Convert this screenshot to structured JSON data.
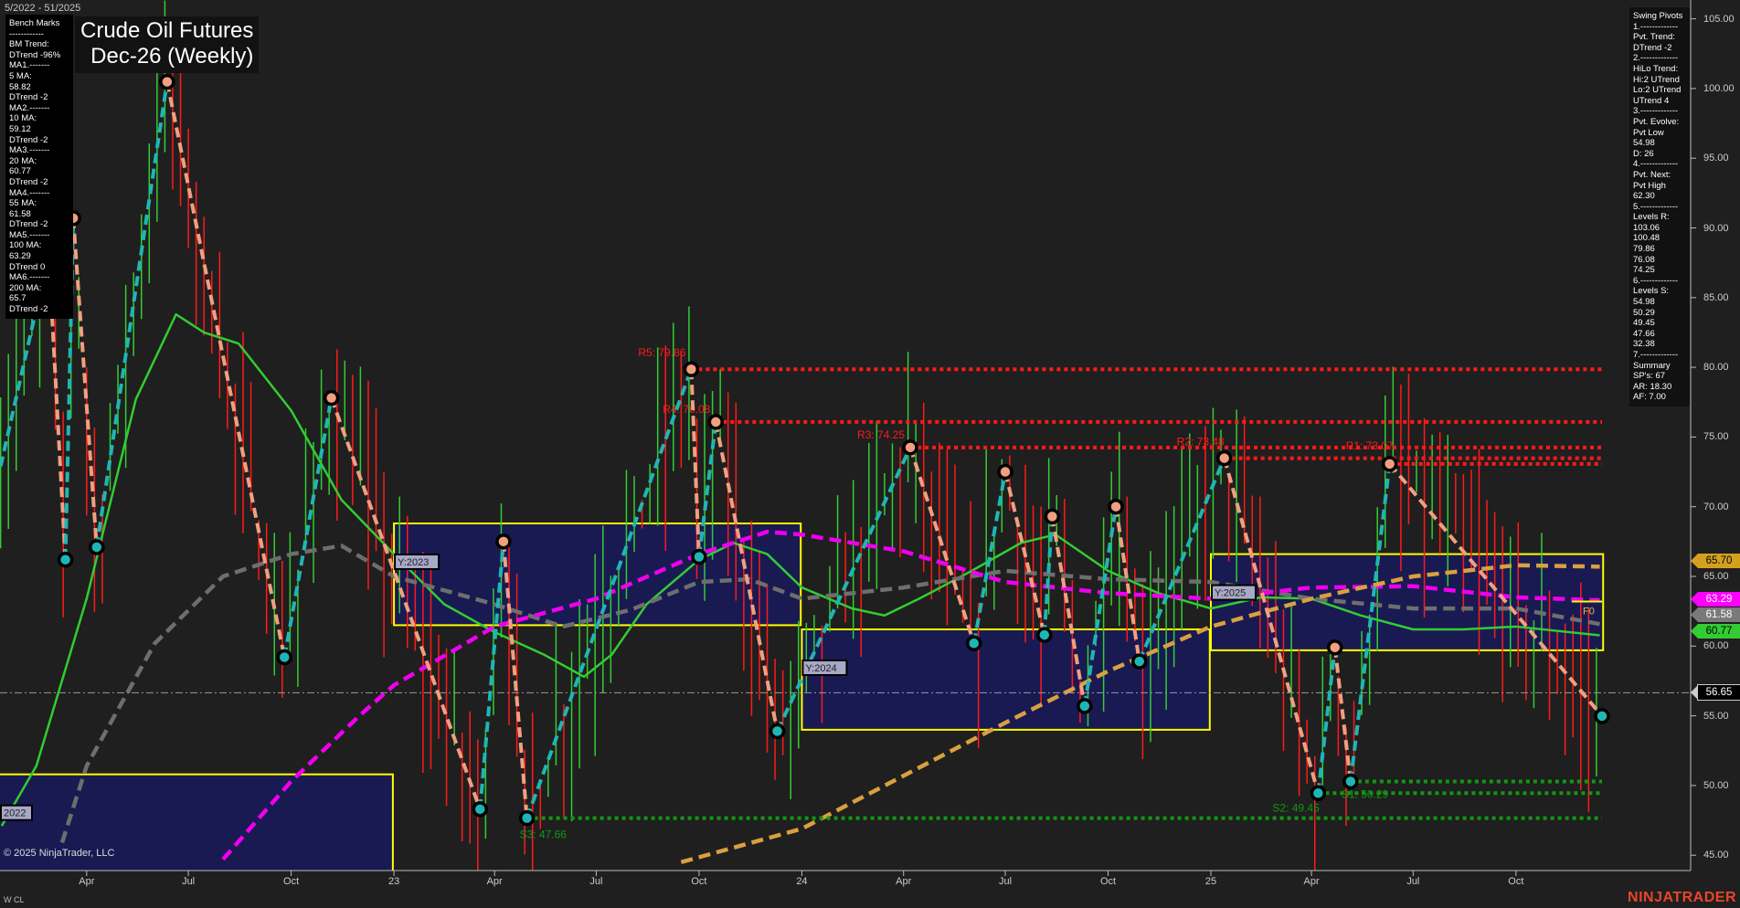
{
  "header": {
    "date_range": "5/2022 - 51/2025",
    "title_line1": "Crude Oil Futures",
    "title_line2": "Dec-26 (Weekly)"
  },
  "bench_marks": {
    "lines": [
      "Bench Marks",
      "------------",
      "BM Trend:",
      "DTrend -96%",
      "MA1.-------",
      "5 MA:",
      "58.82",
      "DTrend -2",
      "MA2.-------",
      "10 MA:",
      "59.12",
      "DTrend -2",
      "MA3.-------",
      "20 MA:",
      "60.77",
      "DTrend -2",
      "MA4.-------",
      "55 MA:",
      "61.58",
      "DTrend -2",
      "MA5.-------",
      "100 MA:",
      "63.29",
      "DTrend 0",
      "MA6.-------",
      "200 MA:",
      "65.7",
      "DTrend -2"
    ]
  },
  "swing_pivots": {
    "lines": [
      "Swing Pivots",
      "1.-------------",
      "Pvt. Trend:",
      "DTrend -2",
      "2.-------------",
      "HiLo Trend:",
      "Hi:2 UTrend",
      "Lo:2 UTrend",
      "UTrend 4",
      "3.-------------",
      "Pvt. Evolve:",
      "Pvt Low",
      "54.98",
      "D: 26",
      "4.-------------",
      "Pvt. Next:",
      "Pvt High",
      "62.30",
      "5.-------------",
      "Levels R:",
      "103.06",
      "100.48",
      "79.86",
      "76.08",
      "74.25",
      "6.-------------",
      "Levels S:",
      "54.98",
      "50.29",
      "49.45",
      "47.66",
      "32.38",
      "7.-------------",
      "Summary",
      "SP's: 67",
      "AR: 18.30",
      "AF: 7.00"
    ]
  },
  "price_axis": {
    "ticks": [
      {
        "label": "105.00",
        "value": 105
      },
      {
        "label": "100.00",
        "value": 100
      },
      {
        "label": "95.00",
        "value": 95
      },
      {
        "label": "90.00",
        "value": 90
      },
      {
        "label": "85.00",
        "value": 85
      },
      {
        "label": "80.00",
        "value": 80
      },
      {
        "label": "75.00",
        "value": 75
      },
      {
        "label": "70.00",
        "value": 70
      },
      {
        "label": "65.00",
        "value": 65
      },
      {
        "label": "60.00",
        "value": 60
      },
      {
        "label": "55.00",
        "value": 55
      },
      {
        "label": "50.00",
        "value": 50
      },
      {
        "label": "45.00",
        "value": 45
      }
    ],
    "badges": [
      {
        "label": "65.70",
        "value": 65.7,
        "color": "#d4a020",
        "text_color": "#000000"
      },
      {
        "label": "63.29",
        "value": 63.29,
        "color": "#ff00ff",
        "text_color": "#ffffff"
      },
      {
        "label": "61.58",
        "value": 61.58,
        "color": "#7a7a7a",
        "text_color": "#ffffff"
      },
      {
        "label": "60.77",
        "value": 60.77,
        "color": "#33cc33",
        "text_color": "#000000"
      },
      {
        "label": "56.65",
        "value": 56.65,
        "color": "#000000",
        "text_color": "#ffffff"
      }
    ]
  },
  "time_axis": {
    "labels": [
      {
        "label": "Apr",
        "date": "2022-04-01"
      },
      {
        "label": "Jul",
        "date": "2022-07-01"
      },
      {
        "label": "Oct",
        "date": "2022-10-01"
      },
      {
        "label": "23",
        "date": "2023-01-01"
      },
      {
        "label": "Apr",
        "date": "2023-04-01"
      },
      {
        "label": "Jul",
        "date": "2023-07-01"
      },
      {
        "label": "Oct",
        "date": "2023-10-01"
      },
      {
        "label": "24",
        "date": "2024-01-01"
      },
      {
        "label": "Apr",
        "date": "2024-04-01"
      },
      {
        "label": "Jul",
        "date": "2024-07-01"
      },
      {
        "label": "Oct",
        "date": "2024-10-01"
      },
      {
        "label": "25",
        "date": "2025-01-01"
      },
      {
        "label": "Apr",
        "date": "2025-04-01"
      },
      {
        "label": "Jul",
        "date": "2025-07-01"
      },
      {
        "label": "Oct",
        "date": "2025-10-01"
      }
    ]
  },
  "footer": {
    "copyright": "© 2025 NinjaTrader, LLC",
    "instrument": "W CL",
    "logo": "NINJATRADER"
  },
  "chart_data": {
    "type": "line",
    "ylim": [
      44,
      106
    ],
    "colors": {
      "background": "#1f1f1f",
      "up_leg": "#20b5b5",
      "down_leg": "#f0a080",
      "resistance": "#ff1a1a",
      "support": "#119911",
      "box_fill": "#191a52",
      "box_border": "#ffff00",
      "up_bar": "#33cc33",
      "down_bar": "#ff1a1a"
    },
    "swing_pivots": [
      {
        "date": "2022-01-14",
        "price": 72.9,
        "type": "start"
      },
      {
        "date": "2022-02-26",
        "price": 88.1,
        "type": "high"
      },
      {
        "date": "2022-03-13",
        "price": 66.2,
        "type": "low"
      },
      {
        "date": "2022-03-20",
        "price": 90.7,
        "type": "high"
      },
      {
        "date": "2022-04-10",
        "price": 67.1,
        "type": "low"
      },
      {
        "date": "2022-06-12",
        "price": 100.48,
        "type": "high"
      },
      {
        "date": "2022-09-25",
        "price": 59.2,
        "type": "low"
      },
      {
        "date": "2022-11-06",
        "price": 77.8,
        "type": "high"
      },
      {
        "date": "2023-03-19",
        "price": 48.3,
        "type": "low"
      },
      {
        "date": "2023-04-09",
        "price": 67.5,
        "type": "high"
      },
      {
        "date": "2023-04-30",
        "price": 47.66,
        "type": "low"
      },
      {
        "date": "2023-09-24",
        "price": 79.86,
        "type": "high"
      },
      {
        "date": "2023-10-01",
        "price": 66.4,
        "type": "low"
      },
      {
        "date": "2023-10-16",
        "price": 76.08,
        "type": "high"
      },
      {
        "date": "2023-12-10",
        "price": 53.9,
        "type": "low"
      },
      {
        "date": "2024-04-07",
        "price": 74.25,
        "type": "high"
      },
      {
        "date": "2024-06-03",
        "price": 60.2,
        "type": "low"
      },
      {
        "date": "2024-07-01",
        "price": 72.5,
        "type": "high"
      },
      {
        "date": "2024-08-05",
        "price": 60.8,
        "type": "low"
      },
      {
        "date": "2024-08-12",
        "price": 69.3,
        "type": "high"
      },
      {
        "date": "2024-09-10",
        "price": 55.7,
        "type": "low"
      },
      {
        "date": "2024-10-08",
        "price": 70.0,
        "type": "high"
      },
      {
        "date": "2024-10-29",
        "price": 58.9,
        "type": "low"
      },
      {
        "date": "2025-01-13",
        "price": 73.48,
        "type": "high"
      },
      {
        "date": "2025-04-07",
        "price": 49.45,
        "type": "low"
      },
      {
        "date": "2025-04-22",
        "price": 59.9,
        "type": "high"
      },
      {
        "date": "2025-05-06",
        "price": 50.29,
        "type": "low"
      },
      {
        "date": "2025-06-10",
        "price": 73.07,
        "type": "high"
      },
      {
        "date": "2025-12-17",
        "price": 54.98,
        "type": "low"
      }
    ],
    "resistance": [
      {
        "label": "R5: 79.86",
        "price": 79.86,
        "from": "2023-09-24"
      },
      {
        "label": "R4: 76.08",
        "price": 76.08,
        "from": "2023-10-16"
      },
      {
        "label": "R3: 74.25",
        "price": 74.25,
        "from": "2024-04-07"
      },
      {
        "label": "R2: 73.48",
        "price": 73.48,
        "from": "2025-01-13"
      },
      {
        "label": "R1: 73.07",
        "price": 73.07,
        "from": "2025-06-10"
      }
    ],
    "support": [
      {
        "label": "S3: 47.66",
        "price": 47.66,
        "from": "2023-04-30"
      },
      {
        "label": "S2: 49.45",
        "price": 49.45,
        "from": "2025-04-07"
      },
      {
        "label": "S1: 50.29",
        "price": 50.29,
        "from": "2025-05-06"
      }
    ],
    "levels_end": "2025-12-17",
    "reference_line": {
      "price": 56.65
    },
    "forecast": {
      "label": "F0",
      "price": 63.2,
      "from": "2025-11-20",
      "to": "2025-12-17"
    },
    "yearly_boxes": [
      {
        "label": "2022",
        "start": "2022-01-01",
        "end": "2022-12-31",
        "high": 50.8,
        "low": 40
      },
      {
        "label": "Y:2023",
        "start": "2023-01-01",
        "end": "2023-12-31",
        "high": 68.8,
        "low": 61.5
      },
      {
        "label": "Y:2024",
        "start": "2024-01-01",
        "end": "2024-12-31",
        "high": 61.2,
        "low": 54.0
      },
      {
        "label": "Y:2025",
        "start": "2025-01-01",
        "end": "2025-12-18",
        "high": 66.6,
        "low": 59.7
      }
    ],
    "moving_averages": [
      {
        "name": "20 MA",
        "color": "#33cc33",
        "style": "solid",
        "points": [
          [
            "2022-01-15",
            47.1
          ],
          [
            "2022-02-15",
            51.4
          ],
          [
            "2022-04-01",
            63.4
          ],
          [
            "2022-05-15",
            77.7
          ],
          [
            "2022-06-20",
            83.8
          ],
          [
            "2022-07-15",
            82.5
          ],
          [
            "2022-08-15",
            81.7
          ],
          [
            "2022-10-01",
            76.9
          ],
          [
            "2022-11-15",
            70.5
          ],
          [
            "2023-01-01",
            66.6
          ],
          [
            "2023-02-15",
            63.0
          ],
          [
            "2023-04-01",
            61.0
          ],
          [
            "2023-05-15",
            59.4
          ],
          [
            "2023-06-20",
            57.8
          ],
          [
            "2023-07-15",
            59.4
          ],
          [
            "2023-08-15",
            63.0
          ],
          [
            "2023-10-01",
            66.2
          ],
          [
            "2023-11-01",
            67.4
          ],
          [
            "2023-12-01",
            66.6
          ],
          [
            "2024-01-01",
            64.2
          ],
          [
            "2024-02-15",
            62.7
          ],
          [
            "2024-03-15",
            62.2
          ],
          [
            "2024-04-15",
            63.4
          ],
          [
            "2024-06-01",
            65.4
          ],
          [
            "2024-07-15",
            67.4
          ],
          [
            "2024-08-15",
            68.0
          ],
          [
            "2024-10-01",
            65.4
          ],
          [
            "2024-11-15",
            63.8
          ],
          [
            "2025-01-01",
            62.7
          ],
          [
            "2025-02-15",
            63.5
          ],
          [
            "2025-04-01",
            63.4
          ],
          [
            "2025-05-15",
            62.2
          ],
          [
            "2025-07-01",
            61.2
          ],
          [
            "2025-08-15",
            61.2
          ],
          [
            "2025-10-01",
            61.4
          ],
          [
            "2025-12-15",
            60.77
          ]
        ]
      },
      {
        "name": "55 MA",
        "color": "#6e6e6e",
        "style": "dashed",
        "points": [
          [
            "2022-03-10",
            45.9
          ],
          [
            "2022-04-01",
            51.4
          ],
          [
            "2022-06-01",
            60.2
          ],
          [
            "2022-08-01",
            65.0
          ],
          [
            "2022-10-01",
            66.6
          ],
          [
            "2022-11-15",
            67.2
          ],
          [
            "2023-01-01",
            65.0
          ],
          [
            "2023-04-01",
            63.0
          ],
          [
            "2023-06-01",
            61.4
          ],
          [
            "2023-08-01",
            62.6
          ],
          [
            "2023-10-01",
            64.6
          ],
          [
            "2023-11-15",
            64.8
          ],
          [
            "2024-01-01",
            63.4
          ],
          [
            "2024-04-01",
            64.2
          ],
          [
            "2024-07-01",
            65.4
          ],
          [
            "2024-10-01",
            64.8
          ],
          [
            "2025-01-01",
            64.6
          ],
          [
            "2025-04-01",
            63.4
          ],
          [
            "2025-07-01",
            62.7
          ],
          [
            "2025-10-01",
            62.7
          ],
          [
            "2025-12-15",
            61.58
          ]
        ]
      },
      {
        "name": "100 MA",
        "color": "#ee00ee",
        "style": "dashed",
        "points": [
          [
            "2022-08-01",
            44.7
          ],
          [
            "2022-10-01",
            50.3
          ],
          [
            "2022-12-01",
            55.0
          ],
          [
            "2023-01-01",
            57.2
          ],
          [
            "2023-04-01",
            61.4
          ],
          [
            "2023-07-01",
            63.4
          ],
          [
            "2023-10-01",
            66.6
          ],
          [
            "2023-12-01",
            68.2
          ],
          [
            "2024-01-01",
            68.0
          ],
          [
            "2024-04-01",
            66.8
          ],
          [
            "2024-07-01",
            64.6
          ],
          [
            "2024-10-01",
            63.8
          ],
          [
            "2025-01-01",
            63.4
          ],
          [
            "2025-04-01",
            64.2
          ],
          [
            "2025-07-01",
            64.3
          ],
          [
            "2025-10-01",
            63.5
          ],
          [
            "2025-12-15",
            63.29
          ]
        ]
      },
      {
        "name": "200 MA",
        "color": "#d9a040",
        "style": "dashed",
        "points": [
          [
            "2023-09-15",
            44.5
          ],
          [
            "2024-01-01",
            46.9
          ],
          [
            "2024-04-01",
            50.7
          ],
          [
            "2024-07-01",
            54.5
          ],
          [
            "2024-10-01",
            58.2
          ],
          [
            "2025-01-01",
            61.4
          ],
          [
            "2025-04-01",
            63.4
          ],
          [
            "2025-07-01",
            65.0
          ],
          [
            "2025-10-01",
            65.8
          ],
          [
            "2025-12-15",
            65.7
          ]
        ]
      }
    ]
  }
}
